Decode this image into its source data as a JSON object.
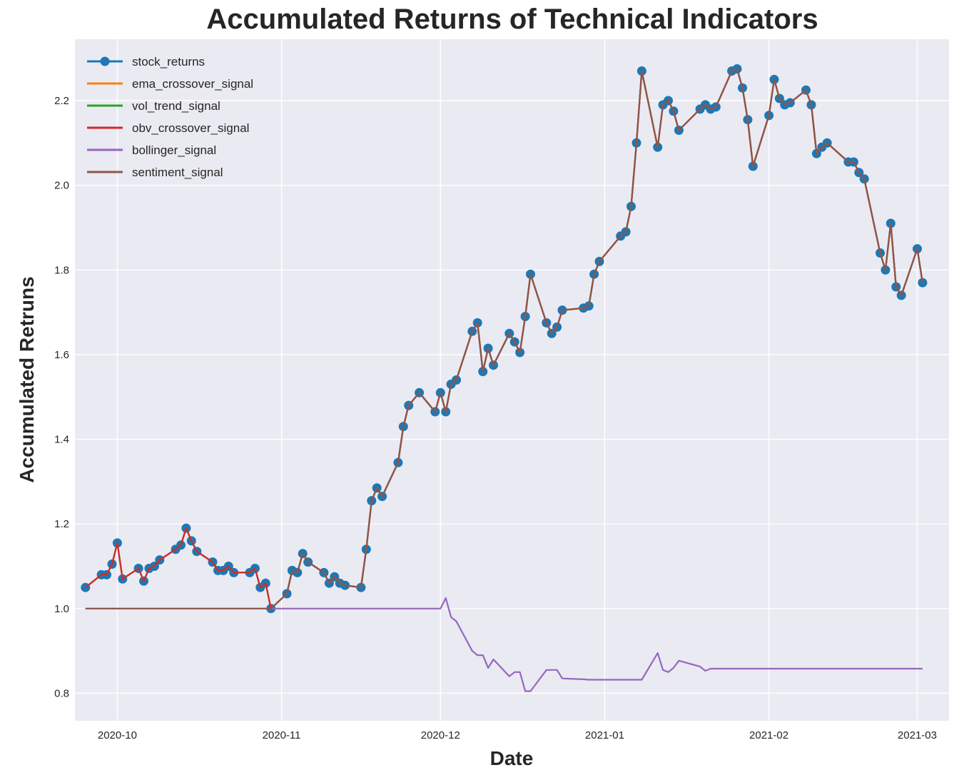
{
  "chart_data": {
    "type": "line",
    "title": "Accumulated Returns of Technical Indicators",
    "xlabel": "Date",
    "ylabel": "Accumulated Retruns",
    "x_range": [
      "2020-09-23",
      "2021-03-07"
    ],
    "ylim": [
      0.735,
      2.345
    ],
    "x_ticks": [
      "2020-10-01",
      "2020-11-01",
      "2020-12-01",
      "2021-01-01",
      "2021-02-01",
      "2021-03-01"
    ],
    "x_tick_labels": [
      "2020-10",
      "2020-11",
      "2020-12",
      "2021-01",
      "2021-02",
      "2021-03"
    ],
    "y_ticks": [
      0.8,
      1.0,
      1.2,
      1.4,
      1.6,
      1.8,
      2.0,
      2.2
    ],
    "y_tick_labels": [
      "0.8",
      "1.0",
      "1.2",
      "1.4",
      "1.6",
      "1.8",
      "2.0",
      "2.2"
    ],
    "grid": true,
    "legend_position": "top-left",
    "series": [
      {
        "name": "stock_returns",
        "color": "#1f77b4",
        "marker": "circle",
        "x": [
          "2020-09-25",
          "2020-09-28",
          "2020-09-29",
          "2020-09-30",
          "2020-10-01",
          "2020-10-02",
          "2020-10-05",
          "2020-10-06",
          "2020-10-07",
          "2020-10-08",
          "2020-10-09",
          "2020-10-12",
          "2020-10-13",
          "2020-10-14",
          "2020-10-15",
          "2020-10-16",
          "2020-10-19",
          "2020-10-20",
          "2020-10-21",
          "2020-10-22",
          "2020-10-23",
          "2020-10-26",
          "2020-10-27",
          "2020-10-28",
          "2020-10-29",
          "2020-10-30",
          "2020-11-02",
          "2020-11-03",
          "2020-11-04",
          "2020-11-05",
          "2020-11-06",
          "2020-11-09",
          "2020-11-10",
          "2020-11-11",
          "2020-11-12",
          "2020-11-13",
          "2020-11-16",
          "2020-11-17",
          "2020-11-18",
          "2020-11-19",
          "2020-11-20",
          "2020-11-23",
          "2020-11-24",
          "2020-11-25",
          "2020-11-27",
          "2020-11-30",
          "2020-12-01",
          "2020-12-02",
          "2020-12-03",
          "2020-12-04",
          "2020-12-07",
          "2020-12-08",
          "2020-12-09",
          "2020-12-10",
          "2020-12-11",
          "2020-12-14",
          "2020-12-15",
          "2020-12-16",
          "2020-12-17",
          "2020-12-18",
          "2020-12-21",
          "2020-12-22",
          "2020-12-23",
          "2020-12-24",
          "2020-12-28",
          "2020-12-29",
          "2020-12-30",
          "2020-12-31",
          "2021-01-04",
          "2021-01-05",
          "2021-01-06",
          "2021-01-07",
          "2021-01-08",
          "2021-01-11",
          "2021-01-12",
          "2021-01-13",
          "2021-01-14",
          "2021-01-15",
          "2021-01-19",
          "2021-01-20",
          "2021-01-21",
          "2021-01-22",
          "2021-01-25",
          "2021-01-26",
          "2021-01-27",
          "2021-01-28",
          "2021-01-29",
          "2021-02-01",
          "2021-02-02",
          "2021-02-03",
          "2021-02-04",
          "2021-02-05",
          "2021-02-08",
          "2021-02-09",
          "2021-02-10",
          "2021-02-11",
          "2021-02-12",
          "2021-02-16",
          "2021-02-17",
          "2021-02-18",
          "2021-02-19",
          "2021-02-22",
          "2021-02-23",
          "2021-02-24",
          "2021-02-25",
          "2021-02-26",
          "2021-03-01",
          "2021-03-02"
        ],
        "values": [
          1.05,
          1.08,
          1.08,
          1.105,
          1.155,
          1.07,
          1.095,
          1.065,
          1.095,
          1.1,
          1.115,
          1.14,
          1.15,
          1.19,
          1.16,
          1.135,
          1.11,
          1.09,
          1.09,
          1.1,
          1.085,
          1.085,
          1.095,
          1.05,
          1.06,
          1.0,
          1.035,
          1.09,
          1.085,
          1.13,
          1.11,
          1.085,
          1.06,
          1.075,
          1.06,
          1.055,
          1.05,
          1.14,
          1.255,
          1.285,
          1.265,
          1.345,
          1.43,
          1.48,
          1.51,
          1.465,
          1.51,
          1.465,
          1.53,
          1.54,
          1.655,
          1.675,
          1.56,
          1.615,
          1.575,
          1.65,
          1.63,
          1.605,
          1.69,
          1.79,
          1.675,
          1.65,
          1.665,
          1.705,
          1.71,
          1.715,
          1.79,
          1.82,
          1.88,
          1.89,
          1.95,
          2.1,
          2.27,
          2.09,
          2.19,
          2.2,
          2.175,
          2.13,
          2.18,
          2.19,
          2.18,
          2.185,
          2.27,
          2.275,
          2.23,
          2.155,
          2.045,
          2.165,
          2.25,
          2.205,
          2.19,
          2.195,
          2.225,
          2.19,
          2.075,
          2.09,
          2.1,
          2.055,
          2.055,
          2.03,
          2.015,
          1.84,
          1.8,
          1.91,
          1.76,
          1.74,
          1.85,
          1.77
        ]
      },
      {
        "name": "ema_crossover_signal",
        "color": "#ff7f0e",
        "same_as": "stock_returns"
      },
      {
        "name": "vol_trend_signal",
        "color": "#2ca02c",
        "same_as": "stock_returns"
      },
      {
        "name": "obv_crossover_signal",
        "color": "#d62728",
        "same_as": "stock_returns"
      },
      {
        "name": "bollinger_signal",
        "color": "#9467bd",
        "x": [
          "2020-09-25",
          "2020-11-30",
          "2020-12-01",
          "2020-12-02",
          "2020-12-03",
          "2020-12-04",
          "2020-12-07",
          "2020-12-08",
          "2020-12-09",
          "2020-12-10",
          "2020-12-11",
          "2020-12-14",
          "2020-12-15",
          "2020-12-16",
          "2020-12-17",
          "2020-12-18",
          "2020-12-21",
          "2020-12-22",
          "2020-12-23",
          "2020-12-24",
          "2020-12-28",
          "2020-12-29",
          "2020-12-30",
          "2020-12-31",
          "2021-01-04",
          "2021-01-05",
          "2021-01-06",
          "2021-01-07",
          "2021-01-08",
          "2021-01-11",
          "2021-01-12",
          "2021-01-13",
          "2021-01-14",
          "2021-01-15",
          "2021-01-19",
          "2021-01-20",
          "2021-01-21",
          "2021-03-02"
        ],
        "values": [
          1.0,
          1.0,
          1.0,
          1.025,
          0.98,
          0.97,
          0.9,
          0.89,
          0.89,
          0.86,
          0.88,
          0.84,
          0.85,
          0.85,
          0.805,
          0.805,
          0.855,
          0.855,
          0.855,
          0.835,
          0.833,
          0.832,
          0.832,
          0.832,
          0.832,
          0.832,
          0.832,
          0.832,
          0.832,
          0.895,
          0.855,
          0.85,
          0.86,
          0.877,
          0.863,
          0.853,
          0.858,
          0.858
        ]
      },
      {
        "name": "sentiment_signal",
        "color": "#8c564b",
        "x": [
          "2020-09-25",
          "2020-10-30",
          "2020-11-02",
          "2020-11-03",
          "2020-11-04",
          "2020-11-05",
          "2020-11-06",
          "2020-11-09",
          "2020-11-10",
          "2020-11-11",
          "2020-11-12",
          "2020-11-13",
          "2020-11-16",
          "2020-11-17",
          "2020-11-18",
          "2020-11-19",
          "2020-11-20",
          "2020-11-23",
          "2020-11-24",
          "2020-11-25",
          "2020-11-27",
          "2020-11-30",
          "2020-12-01",
          "2020-12-02",
          "2020-12-03",
          "2020-12-04",
          "2020-12-07",
          "2020-12-08",
          "2020-12-09",
          "2020-12-10",
          "2020-12-11",
          "2020-12-14",
          "2020-12-15",
          "2020-12-16",
          "2020-12-17",
          "2020-12-18",
          "2020-12-21",
          "2020-12-22",
          "2020-12-23",
          "2020-12-24",
          "2020-12-28",
          "2020-12-29",
          "2020-12-30",
          "2020-12-31",
          "2021-01-04",
          "2021-01-05",
          "2021-01-06",
          "2021-01-07",
          "2021-01-08",
          "2021-01-11",
          "2021-01-12",
          "2021-01-13",
          "2021-01-14",
          "2021-01-15",
          "2021-01-19",
          "2021-01-20",
          "2021-01-21",
          "2021-01-22",
          "2021-01-25",
          "2021-01-26",
          "2021-01-27",
          "2021-01-28",
          "2021-01-29",
          "2021-02-01",
          "2021-02-02",
          "2021-02-03",
          "2021-02-04",
          "2021-02-05",
          "2021-02-08",
          "2021-02-09",
          "2021-02-10",
          "2021-02-11",
          "2021-02-12",
          "2021-02-16",
          "2021-02-17",
          "2021-02-18",
          "2021-02-19",
          "2021-02-22",
          "2021-02-23",
          "2021-02-24",
          "2021-02-25",
          "2021-02-26",
          "2021-03-01",
          "2021-03-02"
        ],
        "values": [
          1.0,
          1.0,
          1.035,
          1.09,
          1.085,
          1.13,
          1.11,
          1.085,
          1.06,
          1.075,
          1.06,
          1.055,
          1.05,
          1.14,
          1.255,
          1.285,
          1.265,
          1.345,
          1.43,
          1.48,
          1.51,
          1.465,
          1.51,
          1.465,
          1.53,
          1.54,
          1.655,
          1.675,
          1.56,
          1.615,
          1.575,
          1.65,
          1.63,
          1.605,
          1.69,
          1.79,
          1.675,
          1.65,
          1.665,
          1.705,
          1.71,
          1.715,
          1.79,
          1.82,
          1.88,
          1.89,
          1.95,
          2.1,
          2.27,
          2.09,
          2.19,
          2.2,
          2.175,
          2.13,
          2.18,
          2.19,
          2.18,
          2.185,
          2.27,
          2.275,
          2.23,
          2.155,
          2.045,
          2.165,
          2.25,
          2.205,
          2.19,
          2.195,
          2.225,
          2.19,
          2.075,
          2.09,
          2.1,
          2.055,
          2.055,
          2.03,
          2.015,
          1.84,
          1.8,
          1.91,
          1.76,
          1.74,
          1.85,
          1.77
        ]
      }
    ]
  }
}
